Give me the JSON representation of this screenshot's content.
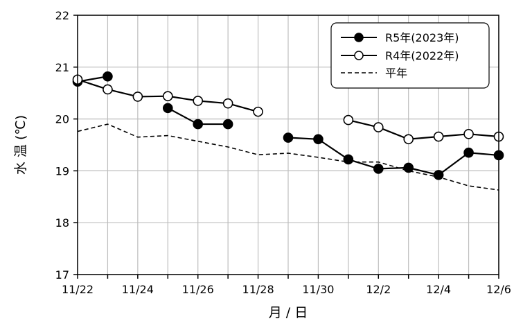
{
  "chart_data": {
    "type": "line",
    "title": "",
    "xlabel": "月 / 日",
    "ylabel": "水 温 (℃)",
    "ylim": [
      17,
      22
    ],
    "yticks": [
      17,
      18,
      19,
      20,
      21,
      22
    ],
    "x_dates": [
      "11/22",
      "11/23",
      "11/24",
      "11/25",
      "11/26",
      "11/27",
      "11/28",
      "11/29",
      "11/30",
      "12/1",
      "12/2",
      "12/3",
      "12/4",
      "12/5",
      "12/6"
    ],
    "x_tick_labels": [
      "11/22",
      "11/24",
      "11/26",
      "11/28",
      "11/30",
      "12/2",
      "12/4",
      "12/6"
    ],
    "grid": true,
    "legend_position": "top-right",
    "series": [
      {
        "name": "R5年(2023年)",
        "marker": "filled-circle",
        "line": "solid",
        "values": [
          20.72,
          20.82,
          null,
          20.21,
          19.9,
          19.9,
          null,
          19.64,
          19.61,
          19.22,
          19.04,
          19.06,
          18.92,
          19.35,
          19.3
        ]
      },
      {
        "name": "R4年(2022年)",
        "marker": "open-circle",
        "line": "solid",
        "values": [
          20.76,
          20.57,
          20.43,
          20.44,
          20.35,
          20.3,
          20.14,
          null,
          null,
          19.98,
          19.84,
          19.61,
          19.66,
          19.71,
          19.66
        ]
      },
      {
        "name": "平年",
        "marker": "none",
        "line": "dashed",
        "values": [
          19.76,
          19.9,
          19.65,
          19.68,
          19.57,
          19.46,
          19.31,
          19.34,
          19.26,
          19.17,
          19.17,
          19.0,
          18.88,
          18.71,
          18.63
        ]
      }
    ]
  },
  "colors": {
    "line": "#000000",
    "grid": "#bdbdbd",
    "open_marker_fill": "#ffffff"
  }
}
